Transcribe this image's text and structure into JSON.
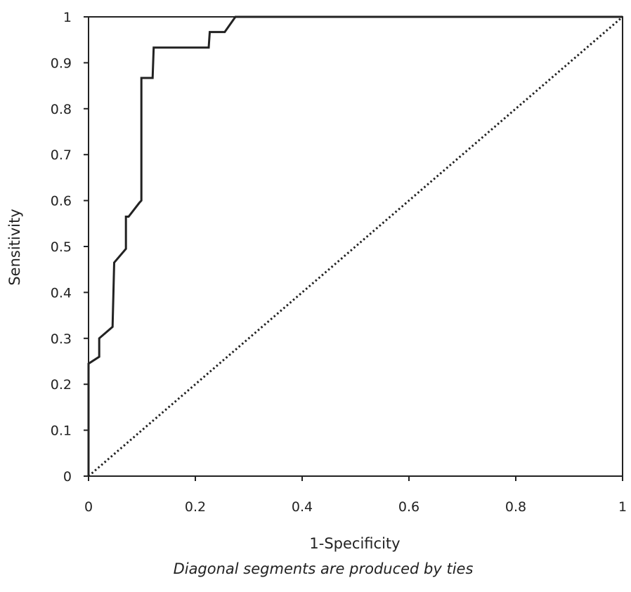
{
  "chart_data": {
    "type": "line",
    "title": "",
    "xlabel": "1-Specificity",
    "ylabel": "Sensitivity",
    "note": "Diagonal segments are produced by ties",
    "xlim": [
      0,
      1
    ],
    "ylim": [
      0,
      1
    ],
    "x_ticks": [
      "0",
      "0.2",
      "0.4",
      "0.6",
      "0.8",
      "1"
    ],
    "y_ticks": [
      "0",
      "0.1",
      "0.2",
      "0.3",
      "0.4",
      "0.5",
      "0.6",
      "0.7",
      "0.8",
      "0.9",
      "1"
    ],
    "grid": false,
    "legend": "none",
    "series": [
      {
        "style": "solid",
        "color": "#222222",
        "x": [
          0,
          0,
          0.02,
          0.02,
          0.045,
          0.048,
          0.07,
          0.07,
          0.075,
          0.095,
          0.099,
          0.099,
          0.12,
          0.122,
          0.225,
          0.227,
          0.255,
          0.275,
          0.278,
          1
        ],
        "y": [
          0,
          0.245,
          0.26,
          0.3,
          0.325,
          0.465,
          0.495,
          0.565,
          0.565,
          0.595,
          0.6,
          0.867,
          0.867,
          0.933,
          0.933,
          0.967,
          0.967,
          1.0,
          1.0,
          1.0
        ]
      },
      {
        "style": "dotted",
        "color": "#222222",
        "x": [
          0,
          1
        ],
        "y": [
          0,
          1
        ]
      }
    ]
  }
}
